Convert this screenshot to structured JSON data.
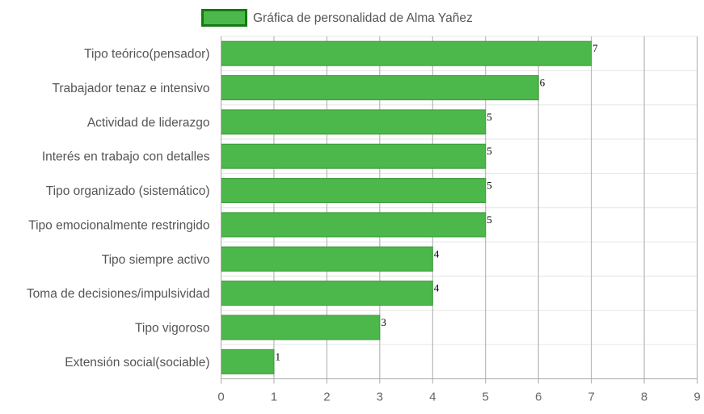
{
  "chart_data": {
    "type": "bar",
    "orientation": "horizontal",
    "title": "",
    "xlabel": "",
    "ylabel": "",
    "legend": {
      "placement": "top-center",
      "label": "Gráfica de personalidad de Alma Yañez"
    },
    "categories": [
      "Tipo teórico(pensador)",
      "Trabajador tenaz e intensivo",
      "Actividad de liderazgo",
      "Interés en trabajo con detalles",
      "Tipo organizado (sistemático)",
      "Tipo emocionalmente restringido",
      "Tipo siempre activo",
      "Toma de decisiones/impulsividad",
      "Tipo vigoroso",
      "Extensión social(sociable)"
    ],
    "series": [
      {
        "name": "Gráfica de personalidad de Alma Yañez",
        "values": [
          7,
          6,
          5,
          5,
          5,
          5,
          4,
          4,
          3,
          1
        ]
      }
    ],
    "xlim": [
      0,
      9
    ],
    "xticks": [
      "0",
      "1",
      "2",
      "3",
      "4",
      "5",
      "6",
      "7",
      "8",
      "9"
    ],
    "grid": true,
    "data_labels": true,
    "colors": {
      "bar_fill": "#4cb74a",
      "bar_edge": "#3a9a38",
      "legend_fill": "#4cb74a",
      "legend_edge": "#137a12",
      "grid": "#aaaaaa",
      "row_grid": "#e6e6e6"
    }
  }
}
